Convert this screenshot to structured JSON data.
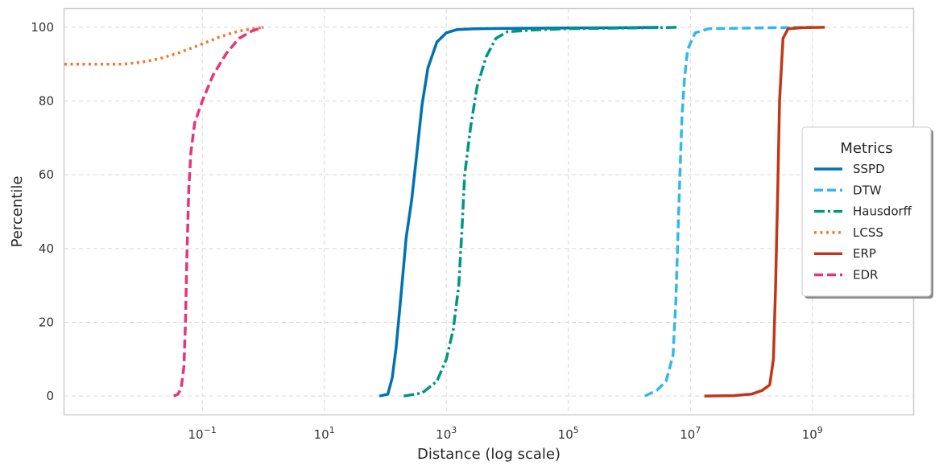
{
  "chart_data": {
    "type": "line",
    "xlabel": "Distance (log scale)",
    "ylabel": "Percentile",
    "xscale": "log",
    "xlim": [
      0.00055,
      45000000000
    ],
    "ylim": [
      -5,
      105
    ],
    "grid": true,
    "x_ticks": [
      {
        "value": 0.1,
        "base": "10",
        "exp": "−1"
      },
      {
        "value": 10,
        "base": "10",
        "exp": "1"
      },
      {
        "value": 1000,
        "base": "10",
        "exp": "3"
      },
      {
        "value": 100000,
        "base": "10",
        "exp": "5"
      },
      {
        "value": 10000000,
        "base": "10",
        "exp": "7"
      },
      {
        "value": 1000000000,
        "base": "10",
        "exp": "9"
      }
    ],
    "y_ticks": [
      0,
      20,
      40,
      60,
      80,
      100
    ],
    "legend": {
      "title": "Metrics",
      "position": "right"
    },
    "series": [
      {
        "name": "SSPD",
        "color": "#0072b2",
        "dash": "solid",
        "points": [
          [
            80,
            0
          ],
          [
            110,
            0.5
          ],
          [
            130,
            5
          ],
          [
            150,
            13
          ],
          [
            180,
            27
          ],
          [
            220,
            43
          ],
          [
            270,
            53
          ],
          [
            330,
            66
          ],
          [
            400,
            79
          ],
          [
            500,
            89
          ],
          [
            700,
            96
          ],
          [
            1000,
            98.5
          ],
          [
            1500,
            99.4
          ],
          [
            3000,
            99.6
          ],
          [
            10000,
            99.7
          ],
          [
            100000,
            99.8
          ],
          [
            1000000,
            99.9
          ],
          [
            3000000,
            100
          ]
        ]
      },
      {
        "name": "DTW",
        "color": "#35b8e8",
        "dash": "dashed",
        "points": [
          [
            1800000,
            0
          ],
          [
            2800000,
            1.5
          ],
          [
            4000000,
            4
          ],
          [
            5200000,
            11
          ],
          [
            5800000,
            26
          ],
          [
            6300000,
            45
          ],
          [
            6800000,
            62
          ],
          [
            7300000,
            76
          ],
          [
            8000000,
            86
          ],
          [
            9000000,
            94
          ],
          [
            12000000,
            98.5
          ],
          [
            20000000,
            99.6
          ],
          [
            100000000,
            99.8
          ],
          [
            1000000000,
            100
          ]
        ]
      },
      {
        "name": "Hausdorff",
        "color": "#009682",
        "dash": "dashdot",
        "points": [
          [
            200,
            0
          ],
          [
            400,
            0.8
          ],
          [
            700,
            4
          ],
          [
            1000,
            10
          ],
          [
            1300,
            18
          ],
          [
            1600,
            30
          ],
          [
            1800,
            45
          ],
          [
            2000,
            60
          ],
          [
            2500,
            73
          ],
          [
            3200,
            84
          ],
          [
            4500,
            92
          ],
          [
            6500,
            97
          ],
          [
            10000,
            98.8
          ],
          [
            30000,
            99.3
          ],
          [
            100000,
            99.6
          ],
          [
            1000000,
            99.8
          ],
          [
            3000000,
            99.9
          ],
          [
            6000000,
            100
          ]
        ]
      },
      {
        "name": "LCSS",
        "color": "#f07830",
        "dash": "dotted",
        "points": [
          [
            0.00055,
            90
          ],
          [
            0.005,
            90
          ],
          [
            0.01,
            90.5
          ],
          [
            0.02,
            91.5
          ],
          [
            0.04,
            93
          ],
          [
            0.07,
            94.5
          ],
          [
            0.1,
            95.5
          ],
          [
            0.2,
            97.5
          ],
          [
            0.4,
            99
          ],
          [
            1,
            100
          ]
        ]
      },
      {
        "name": "ERP",
        "color": "#c23718",
        "dash": "solid",
        "points": [
          [
            17000000,
            0
          ],
          [
            50000000,
            0.1
          ],
          [
            100000000,
            0.5
          ],
          [
            150000000,
            1.5
          ],
          [
            200000000,
            3
          ],
          [
            230000000,
            10
          ],
          [
            250000000,
            30
          ],
          [
            270000000,
            55
          ],
          [
            290000000,
            80
          ],
          [
            330000000,
            97
          ],
          [
            400000000,
            99.6
          ],
          [
            700000000,
            99.9
          ],
          [
            1600000000,
            100
          ]
        ]
      },
      {
        "name": "EDR",
        "color": "#e8347a",
        "dash": "dashed",
        "points": [
          [
            0.034,
            0
          ],
          [
            0.04,
            0.5
          ],
          [
            0.045,
            2
          ],
          [
            0.05,
            8
          ],
          [
            0.053,
            20
          ],
          [
            0.056,
            38
          ],
          [
            0.06,
            56
          ],
          [
            0.065,
            66
          ],
          [
            0.075,
            74
          ],
          [
            0.1,
            80
          ],
          [
            0.15,
            87
          ],
          [
            0.25,
            93
          ],
          [
            0.4,
            97
          ],
          [
            0.65,
            99
          ],
          [
            1,
            100
          ]
        ]
      }
    ]
  }
}
